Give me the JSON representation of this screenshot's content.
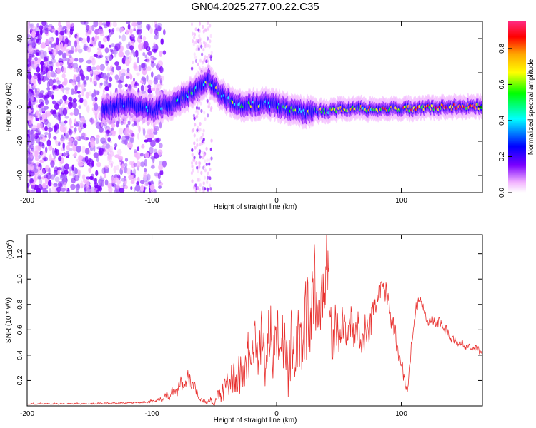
{
  "title": "GN04.2025.277.00.22.C35",
  "colors": {
    "signal": "#e8302e",
    "axis": "#000000",
    "colormap": [
      "#ffffff",
      "#f2b3ff",
      "#7a00ff",
      "#0000ff",
      "#00ffff",
      "#00ff00",
      "#ffff00",
      "#ffa500",
      "#ff0000",
      "#ff2a80"
    ]
  },
  "chart_data": [
    {
      "type": "heatmap",
      "title": "GN04.2025.277.00.22.C35",
      "xlabel": "Height of straight line (km)",
      "ylabel": "Frequency (Hz)",
      "xlim": [
        -200,
        165
      ],
      "ylim": [
        -50,
        50
      ],
      "xticks": [
        -200,
        -100,
        0,
        100
      ],
      "yticks": [
        -40,
        -20,
        0,
        20,
        40
      ],
      "colorbar": {
        "label": "Normalized spectral amplitude",
        "range": [
          0,
          1
        ],
        "ticks": [
          "0.0",
          "0.2",
          "0.4",
          "0.6",
          "0.8"
        ]
      },
      "ridge": {
        "x": [
          -140,
          -120,
          -100,
          -80,
          -60,
          -55,
          -45,
          -30,
          -10,
          0,
          20,
          40,
          60,
          80,
          100,
          130,
          165
        ],
        "freq": [
          -2,
          2,
          -2,
          3,
          12,
          16,
          7,
          1,
          2,
          1,
          -3,
          -2,
          -1,
          -1,
          -1,
          0,
          0
        ],
        "amplitude": [
          0.3,
          0.4,
          0.45,
          0.5,
          0.55,
          0.6,
          0.6,
          0.65,
          0.6,
          0.6,
          0.65,
          0.7,
          0.75,
          0.8,
          0.85,
          0.9,
          0.9
        ]
      }
    },
    {
      "type": "line",
      "xlabel": "Height of straight line (km)",
      "ylabel": "SNR (10 * v/v)",
      "multiplier": "(x10",
      "multiplier_exp": "4",
      "multiplier_close": ")",
      "xlim": [
        -200,
        165
      ],
      "ylim": [
        0,
        1.35
      ],
      "xticks": [
        -200,
        -100,
        0,
        100
      ],
      "yticks": [
        "0.2",
        "0.4",
        "0.6",
        "0.8",
        "1.0",
        "1.2"
      ],
      "series": [
        {
          "name": "SNR",
          "x": [
            -200,
            -150,
            -110,
            -95,
            -85,
            -75,
            -70,
            -60,
            -50,
            -40,
            -30,
            -20,
            -10,
            0,
            10,
            20,
            25,
            30,
            35,
            40,
            45,
            50,
            60,
            70,
            80,
            85,
            90,
            95,
            100,
            105,
            110,
            115,
            120,
            130,
            140,
            150,
            165
          ],
          "y": [
            0.02,
            0.02,
            0.03,
            0.05,
            0.12,
            0.2,
            0.25,
            0.05,
            0.05,
            0.25,
            0.35,
            0.55,
            0.6,
            0.7,
            0.55,
            0.7,
            0.9,
            1.05,
            0.95,
            1.3,
            0.6,
            0.7,
            0.72,
            0.6,
            0.9,
            1.03,
            0.85,
            0.6,
            0.35,
            0.15,
            0.7,
            0.9,
            0.7,
            0.7,
            0.55,
            0.5,
            0.45
          ],
          "amplitude_spread": [
            0.01,
            0.01,
            0.01,
            0.03,
            0.08,
            0.1,
            0.12,
            0.03,
            0.06,
            0.2,
            0.3,
            0.35,
            0.45,
            0.5,
            0.5,
            0.5,
            0.55,
            0.6,
            0.55,
            0.5,
            0.4,
            0.3,
            0.3,
            0.25,
            0.2,
            0.15,
            0.15,
            0.15,
            0.1,
            0.08,
            0.1,
            0.1,
            0.1,
            0.08,
            0.06,
            0.06,
            0.05
          ]
        }
      ]
    }
  ]
}
